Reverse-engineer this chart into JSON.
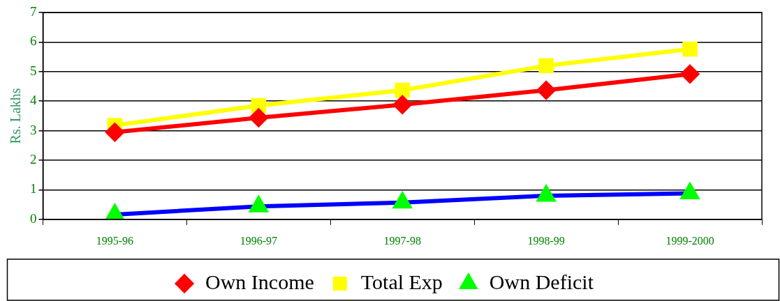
{
  "chart_data": {
    "type": "line",
    "ylabel": "Rs. Lakhs",
    "categories": [
      "1995-96",
      "1996-97",
      "1997-98",
      "1998-99",
      "1999-2000"
    ],
    "series": [
      {
        "name": "Own Income",
        "color": "#ff0000",
        "marker": "diamond",
        "values": [
          2.95,
          3.44,
          3.88,
          4.37,
          4.92
        ]
      },
      {
        "name": "Total Exp",
        "color": "#ffff00",
        "marker": "square",
        "values": [
          3.18,
          3.85,
          4.37,
          5.2,
          5.76
        ]
      },
      {
        "name": "Own Deficit",
        "color": "#0000ff",
        "colors": [
          "#00ff00",
          "#00ff00",
          "#00ff00",
          "#00ff00",
          "#00ff00"
        ],
        "marker": "triangle",
        "values": [
          0.16,
          0.44,
          0.57,
          0.8,
          0.88
        ]
      }
    ],
    "ylim": [
      0,
      7
    ],
    "yticks": [
      0,
      1,
      2,
      3,
      4,
      5,
      6,
      7
    ],
    "grid": "y",
    "legend": "bottom",
    "line_style": "solid"
  }
}
